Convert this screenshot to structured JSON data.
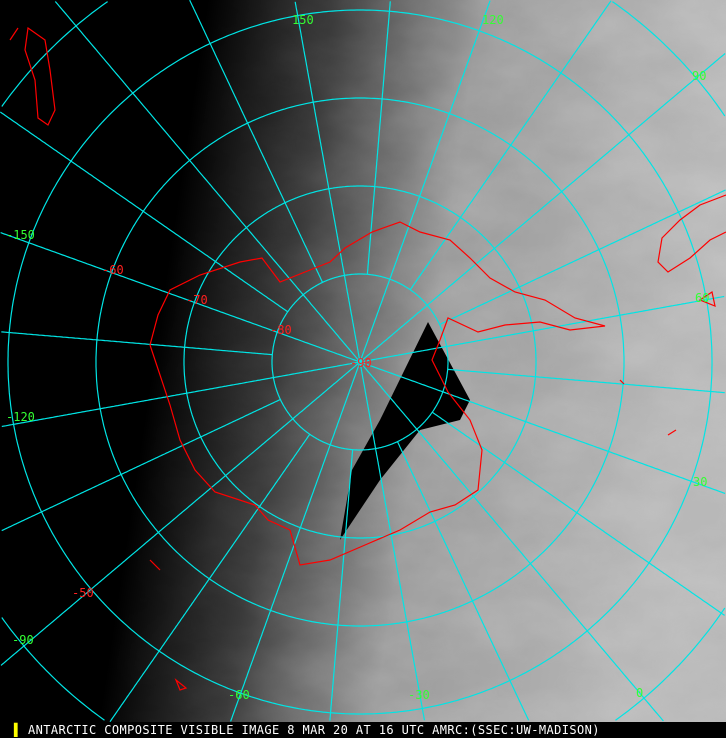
{
  "caption": "ANTARCTIC COMPOSITE VISIBLE IMAGE 8 MAR 20 AT 16 UTC AMRC:(SSEC:UW-MADISON)",
  "colors": {
    "grid": "#00e5e5",
    "coast": "#ff0000",
    "lon_labels": "#33ff33",
    "lat_labels": "#ff2020"
  },
  "longitude_labels": [
    "150",
    "120",
    "90",
    "60",
    "30",
    "0",
    "-30",
    "-60",
    "-90",
    "-120",
    "-150"
  ],
  "latitude_labels": [
    "-90",
    "-80",
    "-70",
    "-60",
    "-50"
  ]
}
